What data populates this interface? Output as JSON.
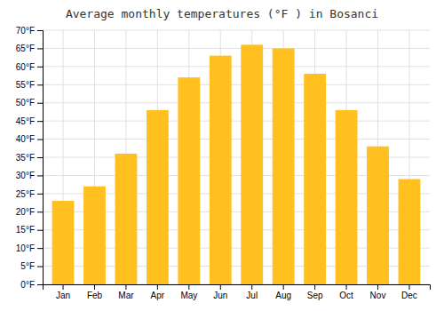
{
  "chart_data": {
    "type": "bar",
    "title": "Average monthly temperatures (°F ) in Bosanci",
    "categories": [
      "Jan",
      "Feb",
      "Mar",
      "Apr",
      "May",
      "Jun",
      "Jul",
      "Aug",
      "Sep",
      "Oct",
      "Nov",
      "Dec"
    ],
    "values": [
      23,
      27,
      36,
      48,
      57,
      63,
      66,
      65,
      58,
      48,
      38,
      29
    ],
    "color": "#FFC020",
    "ylim": [
      0,
      70
    ],
    "yticks": [
      {
        "value": 0,
        "label": "0°F"
      },
      {
        "value": 5,
        "label": "5°F"
      },
      {
        "value": 10,
        "label": "10°F"
      },
      {
        "value": 15,
        "label": "15°F"
      },
      {
        "value": 20,
        "label": "20°F"
      },
      {
        "value": 25,
        "label": "25°F"
      },
      {
        "value": 30,
        "label": "30°F"
      },
      {
        "value": 35,
        "label": "35°F"
      },
      {
        "value": 40,
        "label": "40°F"
      },
      {
        "value": 45,
        "label": "45°F"
      },
      {
        "value": 50,
        "label": "50°F"
      },
      {
        "value": 55,
        "label": "55°F"
      },
      {
        "value": 60,
        "label": "60°F"
      },
      {
        "value": 65,
        "label": "65°F"
      },
      {
        "value": 70,
        "label": "70°F"
      }
    ],
    "grid": true
  }
}
